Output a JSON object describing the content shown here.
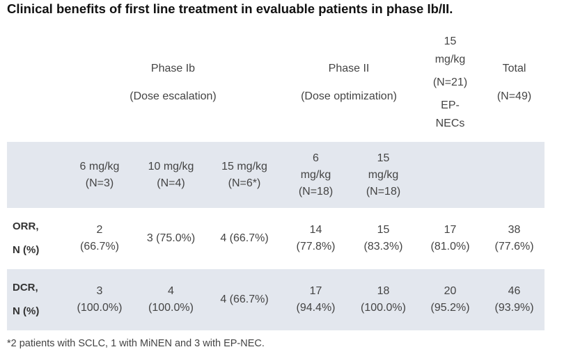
{
  "title": "Clinical benefits of first line treatment in evaluable patients in phase Ib/II.",
  "header": {
    "phase_ib": "Phase Ib",
    "phase_ib_sub": "(Dose escalation)",
    "phase_ii": "Phase II",
    "phase_ii_sub": "(Dose optimization)",
    "nec": [
      "15",
      "mg/kg",
      "(N=21)",
      "EP-",
      "NECs"
    ],
    "total": "Total",
    "total_sub": "(N=49)"
  },
  "subheader": [
    [
      "6 mg/kg",
      "(N=3)"
    ],
    [
      "10 mg/kg",
      "(N=4)"
    ],
    [
      "15 mg/kg",
      "(N=6*)"
    ],
    [
      "6",
      "mg/kg",
      "(N=18)"
    ],
    [
      "15",
      "mg/kg",
      "(N=18)"
    ]
  ],
  "rows": [
    {
      "label": [
        "ORR,",
        "N (%)"
      ],
      "cells": [
        [
          "2",
          "(66.7%)"
        ],
        [
          "3 (75.0%)"
        ],
        [
          "4 (66.7%)"
        ],
        [
          "14",
          "(77.8%)"
        ],
        [
          "15",
          "(83.3%)"
        ],
        [
          "17",
          "(81.0%)"
        ],
        [
          "38",
          "(77.6%)"
        ]
      ]
    },
    {
      "label": [
        "DCR,",
        "N (%)"
      ],
      "cells": [
        [
          "3",
          "(100.0%)"
        ],
        [
          "4",
          "(100.0%)"
        ],
        [
          "4 (66.7%)"
        ],
        [
          "17",
          "(94.4%)"
        ],
        [
          "18",
          "(100.0%)"
        ],
        [
          "20",
          "(95.2%)"
        ],
        [
          "46",
          "(93.9%)"
        ]
      ]
    }
  ],
  "footnote": "*2 patients with SCLC, 1 with MiNEN and 3 with EP-NEC."
}
